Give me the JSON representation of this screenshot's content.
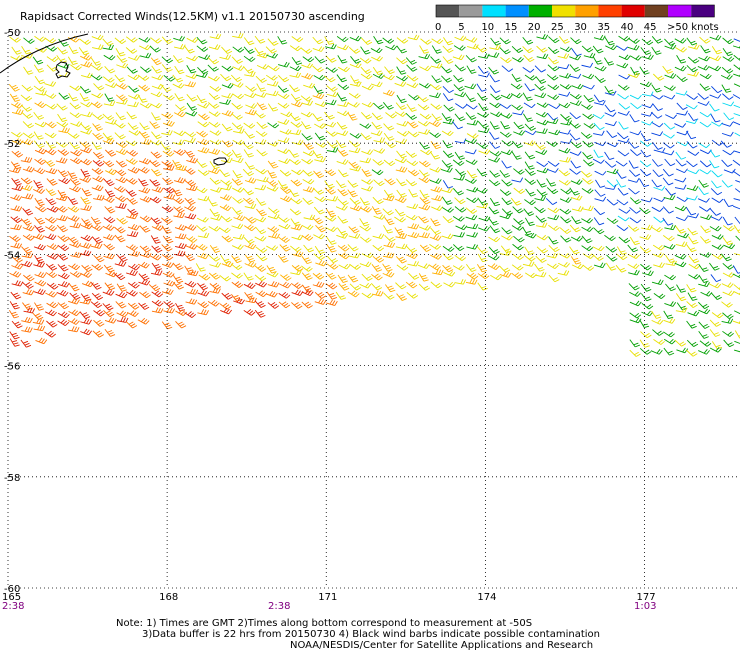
{
  "title": "Rapidsact Corrected Winds(12.5KM) v1.1 20150730 ascending",
  "legend": {
    "ticks": [
      "0",
      "5",
      "10",
      "15",
      "20",
      "25",
      "30",
      "35",
      "40",
      "45",
      ">50 knots"
    ],
    "colors": [
      "#555555",
      "#9a9a9a",
      "#00e0ff",
      "#0090ff",
      "#00b000",
      "#f0e000",
      "#ffa000",
      "#ff4000",
      "#e00000",
      "#704020",
      "#b000ff",
      "#4a0080"
    ]
  },
  "axes": {
    "lat_labels": [
      "-50",
      "-52",
      "-54",
      "-56",
      "-58",
      "-60"
    ],
    "lon_labels": [
      "165",
      "168",
      "171",
      "174",
      "177"
    ],
    "time_labels": [
      "2:38",
      "2:38",
      "1:03"
    ]
  },
  "notes": {
    "line1": "Note: 1) Times are GMT 2)Times along bottom correspond to measurement at -50S",
    "line2": "3)Data buffer is 22 hrs from 20150730 4) Black wind barbs indicate possible contamination",
    "line3": "NOAA/NESDIS/Center for Satellite Applications and Research"
  },
  "chart_data": {
    "type": "wind-barb map",
    "title": "Rapidsact Corrected Winds(12.5KM) v1.1 20150730 ascending",
    "x_axis": "longitude",
    "y_axis": "latitude",
    "xlim": [
      165,
      178.8
    ],
    "ylim": [
      -60,
      -50
    ],
    "units": "knots",
    "color_scale_knots": [
      0,
      5,
      10,
      15,
      20,
      25,
      30,
      35,
      40,
      45,
      50
    ],
    "regions": [
      {
        "name": "northwest",
        "lon": [
          165,
          168.5
        ],
        "lat": [
          -52,
          -50
        ],
        "speed_knots": 22
      },
      {
        "name": "west-band",
        "lon": [
          165,
          171
        ],
        "lat": [
          -55.6,
          -52
        ],
        "speed_knots": 30
      },
      {
        "name": "central",
        "lon": [
          168.5,
          174
        ],
        "lat": [
          -54.5,
          -50
        ],
        "speed_knots": 22
      },
      {
        "name": "east-green",
        "lon": [
          173,
          176.5
        ],
        "lat": [
          -54,
          -50.5
        ],
        "speed_knots": 17
      },
      {
        "name": "east-blue",
        "lon": [
          176,
          178.8
        ],
        "lat": [
          -53.5,
          -51
        ],
        "speed_knots": 12
      },
      {
        "name": "southeast-block",
        "lon": [
          176.7,
          178.8
        ],
        "lat": [
          -55.8,
          -54.1
        ],
        "speed_knots": 16
      }
    ],
    "swath_edge": [
      [
        165,
        -55.6
      ],
      [
        176.7,
        -54.2
      ]
    ]
  }
}
